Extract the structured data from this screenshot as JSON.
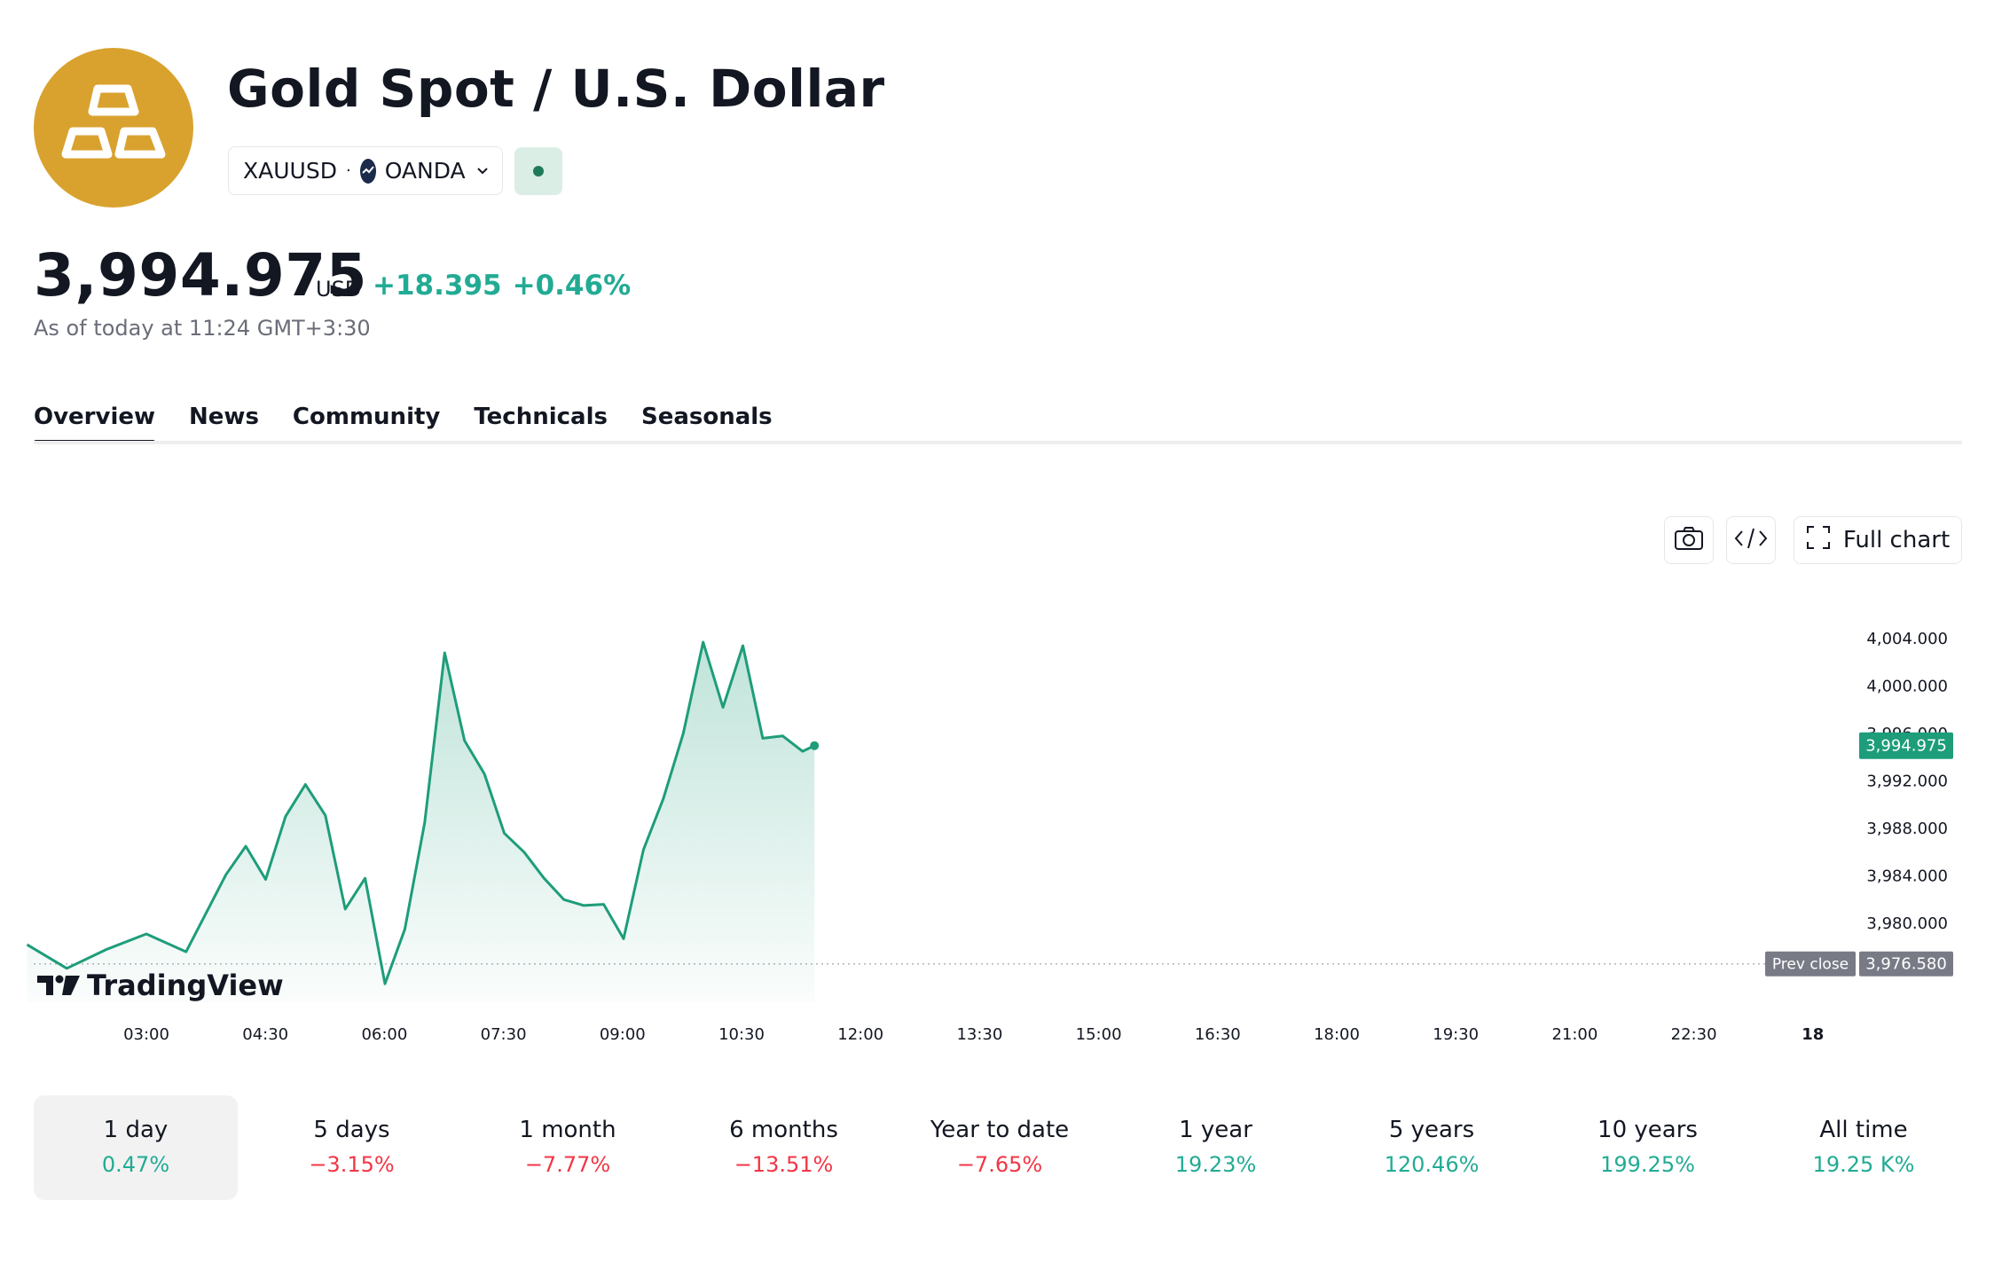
{
  "header": {
    "title": "Gold Spot / U.S. Dollar",
    "symbol": "XAUUSD",
    "separator": "·",
    "exchange": "OANDA"
  },
  "quote": {
    "price": "3,994.975",
    "currency": "USD",
    "change": "+18.395",
    "change_percent": "+0.46%",
    "as_of": "As of today at 11:24 GMT+3:30"
  },
  "tabs": [
    "Overview",
    "News",
    "Community",
    "Technicals",
    "Seasonals"
  ],
  "toolbar": {
    "full_chart_label": "Full chart"
  },
  "branding": {
    "tradingview": "TradingView"
  },
  "colors": {
    "line": "#1e9d7a",
    "positive": "#22ab94",
    "negative": "#f23645",
    "logo": "#D9A22F"
  },
  "chart_data": {
    "type": "area",
    "x_ticks": [
      "03:00",
      "04:30",
      "06:00",
      "07:30",
      "09:00",
      "10:30",
      "12:00",
      "13:30",
      "15:00",
      "16:30",
      "18:00",
      "19:30",
      "21:00",
      "22:30",
      "18"
    ],
    "y_ticks": [
      "4,004.000",
      "4,000.000",
      "3,996.000",
      "3,992.000",
      "3,988.000",
      "3,984.000",
      "3,980.000"
    ],
    "ylim": [
      3974,
      4006
    ],
    "last_price_label": "3,994.975",
    "prev_close_label": "Prev close",
    "prev_close_value": "3,976.580",
    "prev_close": 3976.58,
    "series": [
      {
        "x": [
          "01:30",
          "02:00",
          "02:30",
          "03:00",
          "03:30",
          "04:00",
          "04:15",
          "04:30",
          "04:45",
          "05:00",
          "05:15",
          "05:30",
          "05:45",
          "06:00",
          "06:15",
          "06:30",
          "06:45",
          "07:00",
          "07:15",
          "07:30",
          "07:45",
          "08:00",
          "08:15",
          "08:30",
          "08:45",
          "09:00",
          "09:15",
          "09:30",
          "09:45",
          "10:00",
          "10:15",
          "10:30",
          "10:45",
          "11:00",
          "11:15",
          "11:24"
        ],
        "y": [
          3978.2,
          3976.2,
          3977.8,
          3979.1,
          3977.6,
          3984.1,
          3986.5,
          3983.7,
          3989.0,
          3991.7,
          3989.1,
          3981.2,
          3983.8,
          3974.9,
          3979.5,
          3988.5,
          4002.8,
          3995.4,
          3992.6,
          3987.6,
          3986.0,
          3983.8,
          3982.0,
          3981.5,
          3981.6,
          3978.7,
          3986.2,
          3990.5,
          3996.0,
          4003.7,
          3998.2,
          4003.4,
          3995.6,
          3995.8,
          3994.5,
          3994.975
        ]
      }
    ]
  },
  "periods": [
    {
      "label": "1 day",
      "value": "0.47%",
      "sign": "pos"
    },
    {
      "label": "5 days",
      "value": "−3.15%",
      "sign": "neg"
    },
    {
      "label": "1 month",
      "value": "−7.77%",
      "sign": "neg"
    },
    {
      "label": "6 months",
      "value": "−13.51%",
      "sign": "neg"
    },
    {
      "label": "Year to date",
      "value": "−7.65%",
      "sign": "neg"
    },
    {
      "label": "1 year",
      "value": "19.23%",
      "sign": "pos"
    },
    {
      "label": "5 years",
      "value": "120.46%",
      "sign": "pos"
    },
    {
      "label": "10 years",
      "value": "199.25%",
      "sign": "pos"
    },
    {
      "label": "All time",
      "value": "19.25 K%",
      "sign": "pos"
    }
  ]
}
